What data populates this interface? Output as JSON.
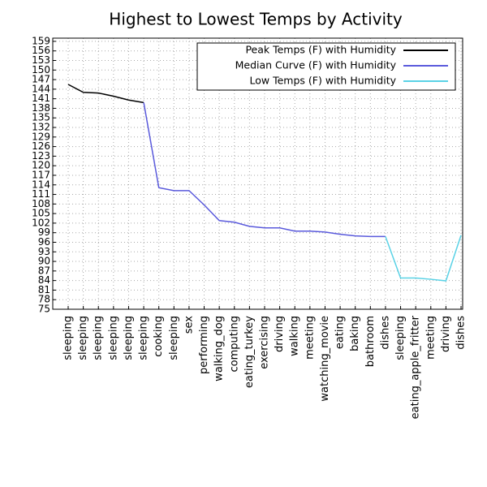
{
  "chart_data": {
    "type": "line",
    "title": "Highest to Lowest Temps by Activity",
    "categories": [
      "sleeping",
      "sleeping",
      "sleeping",
      "sleeping",
      "sleeping",
      "sleeping",
      "cooking",
      "sleeping",
      "sex",
      "performing",
      "walking_dog",
      "computing",
      "eating_turkey",
      "exercising",
      "driving",
      "walking",
      "meeting",
      "watching_movie",
      "eating",
      "baking",
      "bathroom",
      "dishes",
      "sleeping",
      "eating_apple_fritter",
      "meeting",
      "driving",
      "dishes"
    ],
    "series": [
      {
        "name": "Peak Temps (F) with Humidity",
        "color": "#000000",
        "values": [
          145.5,
          143,
          142.8,
          141.8,
          140.6,
          139.8,
          null,
          null,
          null,
          null,
          null,
          null,
          null,
          null,
          null,
          null,
          null,
          null,
          null,
          null,
          null,
          null,
          null,
          null,
          null,
          null,
          null
        ]
      },
      {
        "name": "Median Curve (F) with Humidity",
        "color": "#5a5adc",
        "values": [
          null,
          null,
          null,
          null,
          null,
          139.8,
          113.1,
          112.2,
          112.2,
          107.7,
          102.8,
          102.3,
          101,
          100.5,
          100.5,
          99.5,
          99.5,
          99.2,
          98.5,
          98,
          97.8,
          97.8,
          null,
          null,
          null,
          null,
          null
        ]
      },
      {
        "name": "Low Temps (F) with Humidity",
        "color": "#5ad2e6",
        "values": [
          null,
          null,
          null,
          null,
          null,
          null,
          null,
          null,
          null,
          null,
          null,
          null,
          null,
          null,
          null,
          null,
          null,
          null,
          null,
          null,
          null,
          97.8,
          84.8,
          84.8,
          84.4,
          83.9,
          98.2
        ]
      }
    ],
    "ylim": [
      75,
      160
    ],
    "yticks": [
      75,
      78,
      81,
      84,
      87,
      90,
      93,
      96,
      99,
      102,
      105,
      108,
      111,
      114,
      117,
      120,
      123,
      126,
      129,
      132,
      135,
      138,
      141,
      144,
      147,
      150,
      153,
      156,
      159
    ],
    "grid": true,
    "legend": "upper right"
  }
}
